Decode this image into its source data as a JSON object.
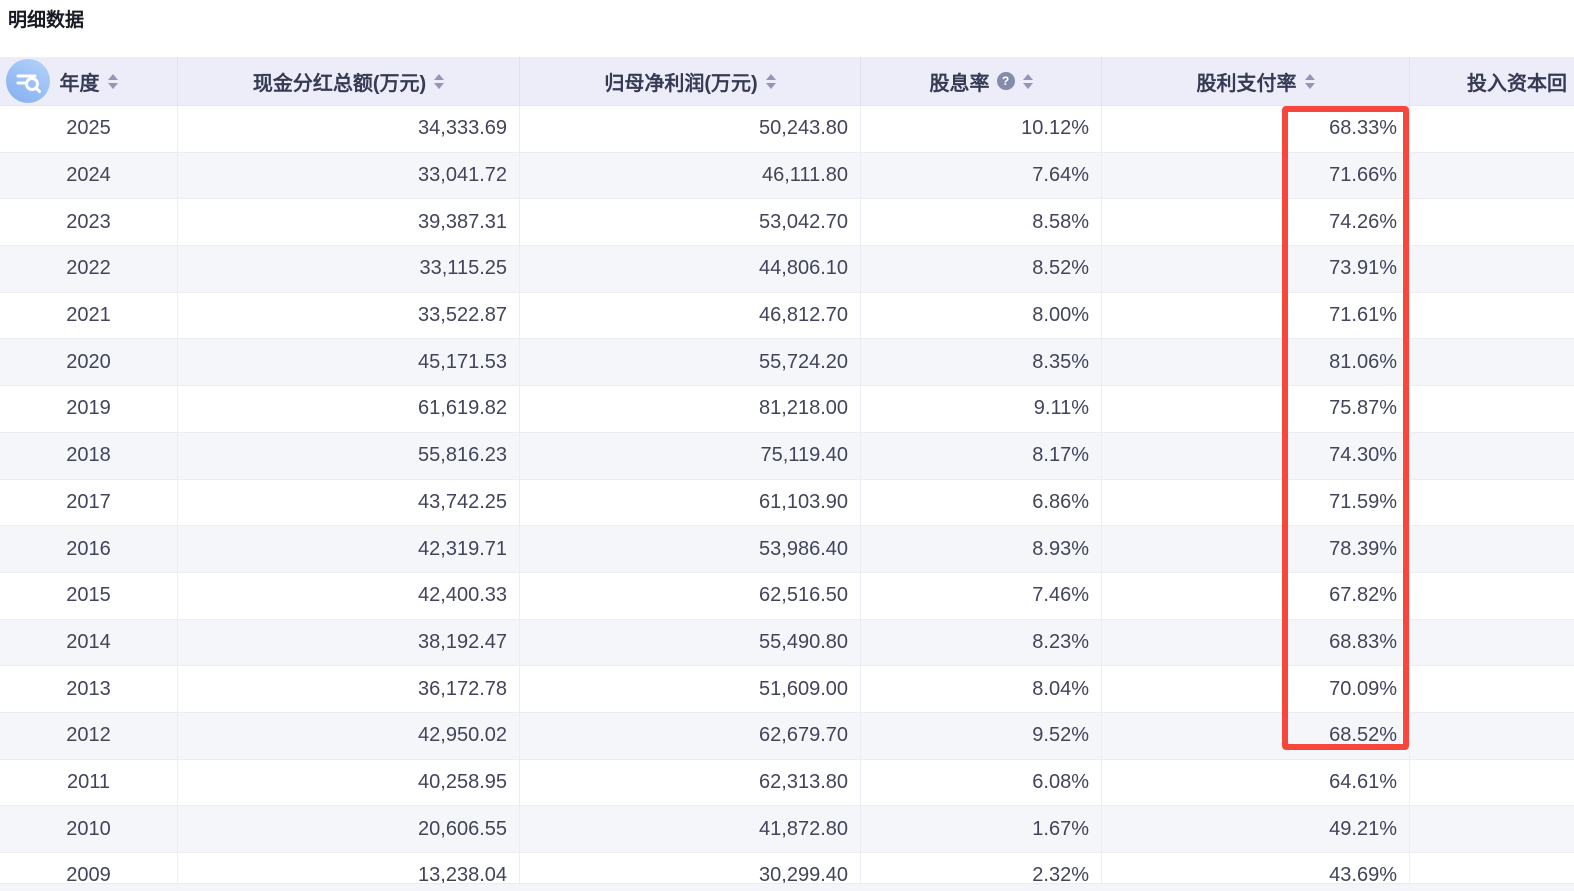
{
  "page": {
    "title": "明细数据"
  },
  "colors": {
    "highlight_red": "#f7463c",
    "header_bg": "#ecedf8",
    "icon_blue": "#8fb7f3"
  },
  "icons": {
    "corner_icon": "search-list-icon",
    "help_icon_glyph": "?",
    "sort_icon": "sort-carets-icon"
  },
  "table": {
    "columns": [
      {
        "key": "year",
        "label": "年度",
        "align": "center",
        "header_align": "center",
        "sortable": true,
        "help": false
      },
      {
        "key": "dividend_total",
        "label": "现金分红总额(万元)",
        "align": "right",
        "header_align": "center",
        "sortable": true,
        "help": false
      },
      {
        "key": "net_profit",
        "label": "归母净利润(万元)",
        "align": "right",
        "header_align": "center",
        "sortable": true,
        "help": false
      },
      {
        "key": "dividend_yield",
        "label": "股息率",
        "align": "right",
        "header_align": "center",
        "sortable": true,
        "help": true
      },
      {
        "key": "payout_ratio",
        "label": "股利支付率",
        "align": "right",
        "header_align": "center",
        "sortable": true,
        "help": false
      },
      {
        "key": "roic",
        "label": "投入资本回",
        "align": "right",
        "header_align": "right",
        "sortable": false,
        "help": false,
        "truncated": true
      }
    ],
    "rows": [
      {
        "year": "2025",
        "dividend_total": "34,333.69",
        "net_profit": "50,243.80",
        "dividend_yield": "10.12%",
        "payout_ratio": "68.33%",
        "roic": ""
      },
      {
        "year": "2024",
        "dividend_total": "33,041.72",
        "net_profit": "46,111.80",
        "dividend_yield": "7.64%",
        "payout_ratio": "71.66%",
        "roic": ""
      },
      {
        "year": "2023",
        "dividend_total": "39,387.31",
        "net_profit": "53,042.70",
        "dividend_yield": "8.58%",
        "payout_ratio": "74.26%",
        "roic": ""
      },
      {
        "year": "2022",
        "dividend_total": "33,115.25",
        "net_profit": "44,806.10",
        "dividend_yield": "8.52%",
        "payout_ratio": "73.91%",
        "roic": ""
      },
      {
        "year": "2021",
        "dividend_total": "33,522.87",
        "net_profit": "46,812.70",
        "dividend_yield": "8.00%",
        "payout_ratio": "71.61%",
        "roic": ""
      },
      {
        "year": "2020",
        "dividend_total": "45,171.53",
        "net_profit": "55,724.20",
        "dividend_yield": "8.35%",
        "payout_ratio": "81.06%",
        "roic": ""
      },
      {
        "year": "2019",
        "dividend_total": "61,619.82",
        "net_profit": "81,218.00",
        "dividend_yield": "9.11%",
        "payout_ratio": "75.87%",
        "roic": ""
      },
      {
        "year": "2018",
        "dividend_total": "55,816.23",
        "net_profit": "75,119.40",
        "dividend_yield": "8.17%",
        "payout_ratio": "74.30%",
        "roic": ""
      },
      {
        "year": "2017",
        "dividend_total": "43,742.25",
        "net_profit": "61,103.90",
        "dividend_yield": "6.86%",
        "payout_ratio": "71.59%",
        "roic": ""
      },
      {
        "year": "2016",
        "dividend_total": "42,319.71",
        "net_profit": "53,986.40",
        "dividend_yield": "8.93%",
        "payout_ratio": "78.39%",
        "roic": ""
      },
      {
        "year": "2015",
        "dividend_total": "42,400.33",
        "net_profit": "62,516.50",
        "dividend_yield": "7.46%",
        "payout_ratio": "67.82%",
        "roic": ""
      },
      {
        "year": "2014",
        "dividend_total": "38,192.47",
        "net_profit": "55,490.80",
        "dividend_yield": "8.23%",
        "payout_ratio": "68.83%",
        "roic": ""
      },
      {
        "year": "2013",
        "dividend_total": "36,172.78",
        "net_profit": "51,609.00",
        "dividend_yield": "8.04%",
        "payout_ratio": "70.09%",
        "roic": ""
      },
      {
        "year": "2012",
        "dividend_total": "42,950.02",
        "net_profit": "62,679.70",
        "dividend_yield": "9.52%",
        "payout_ratio": "68.52%",
        "roic": ""
      },
      {
        "year": "2011",
        "dividend_total": "40,258.95",
        "net_profit": "62,313.80",
        "dividend_yield": "6.08%",
        "payout_ratio": "64.61%",
        "roic": ""
      },
      {
        "year": "2010",
        "dividend_total": "20,606.55",
        "net_profit": "41,872.80",
        "dividend_yield": "1.67%",
        "payout_ratio": "49.21%",
        "roic": ""
      },
      {
        "year": "2009",
        "dividend_total": "13,238.04",
        "net_profit": "30,299.40",
        "dividend_yield": "2.32%",
        "payout_ratio": "43.69%",
        "roic": ""
      }
    ]
  },
  "annotations": {
    "highlight_box": {
      "color": "#f7463c",
      "column": "payout_ratio",
      "from_year": "2025",
      "to_year": "2012"
    }
  }
}
